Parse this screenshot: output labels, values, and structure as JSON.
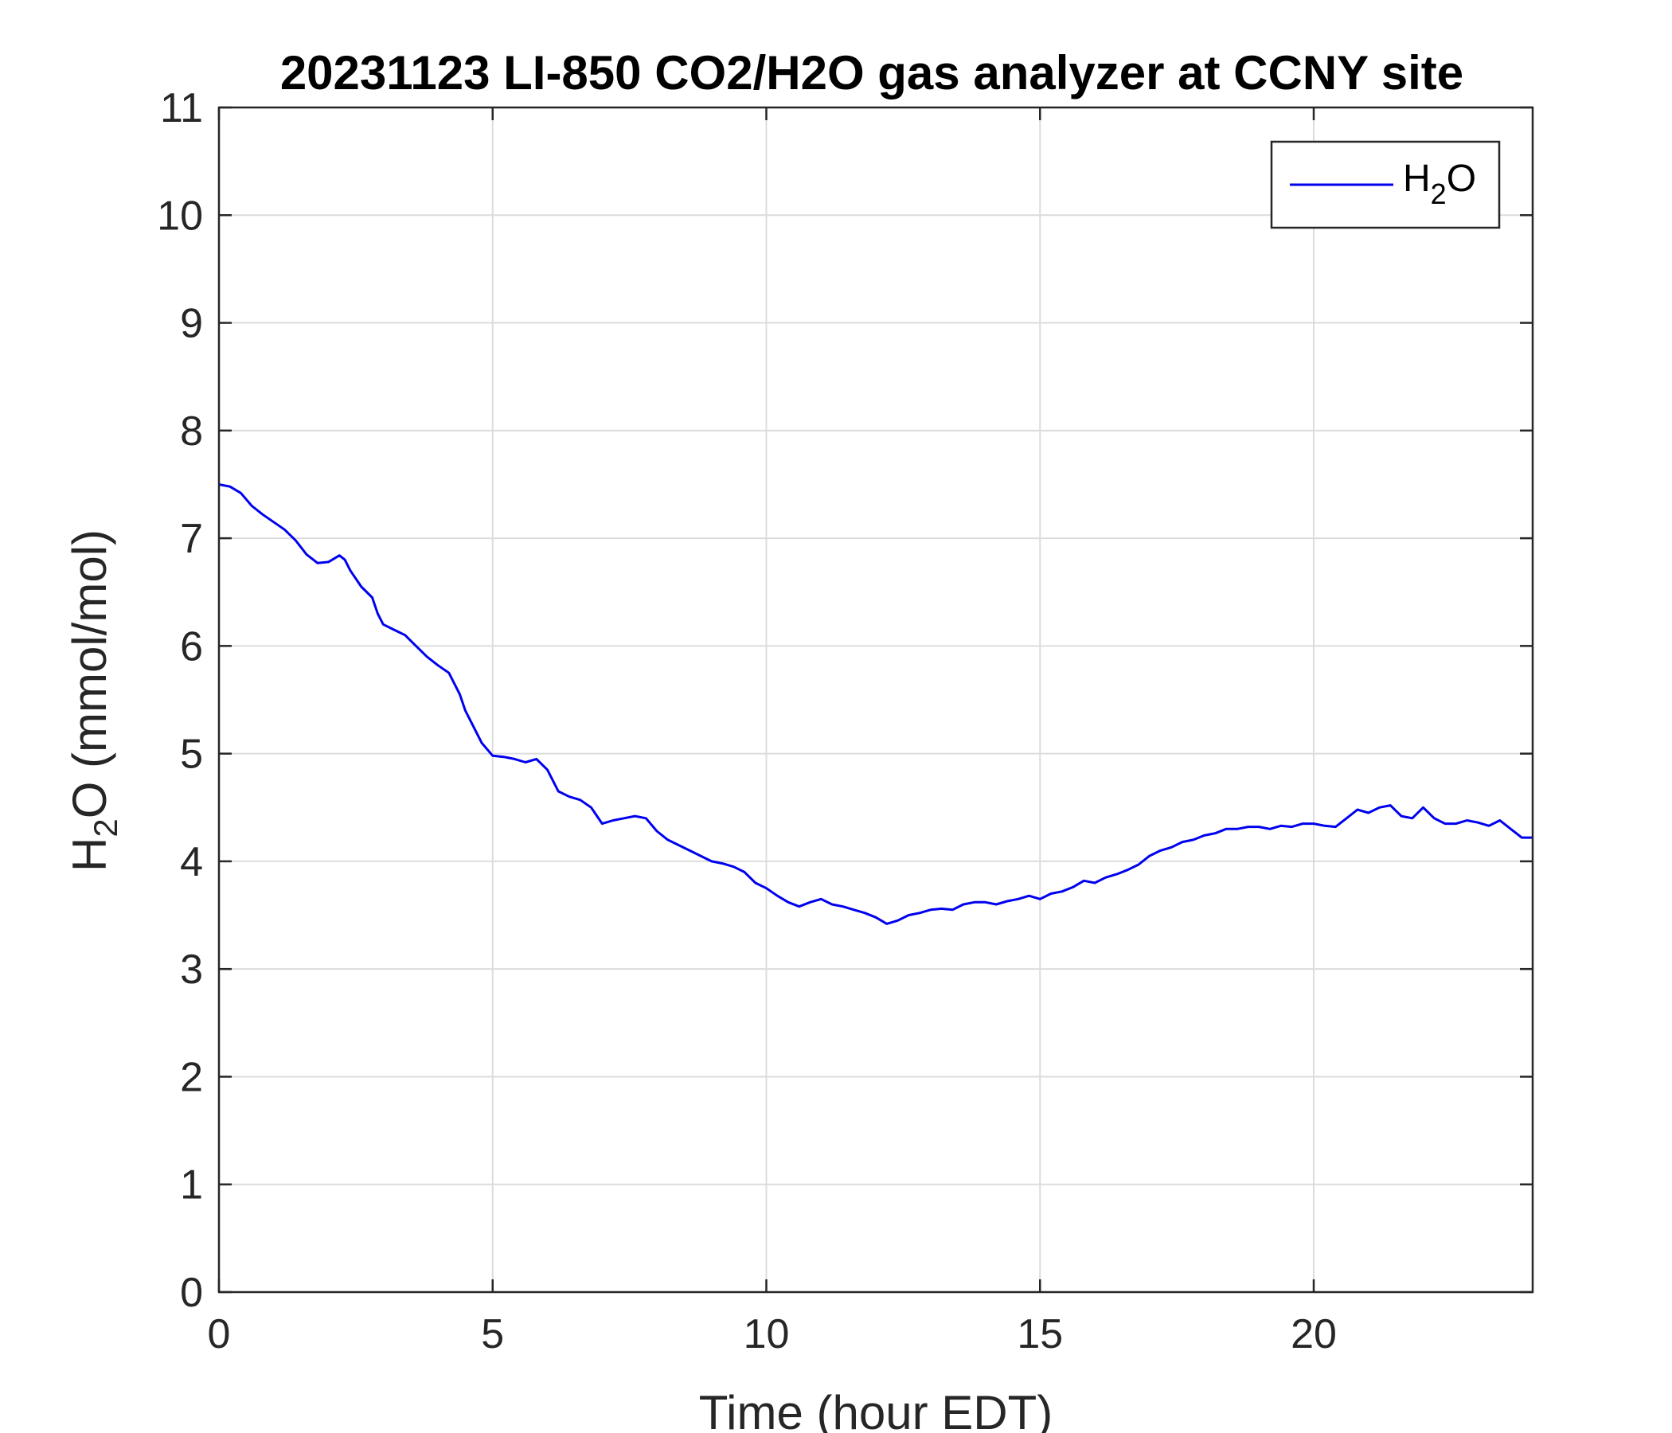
{
  "chart_data": {
    "type": "line",
    "title": "20231123 LI-850 CO2/H2O gas analyzer at CCNY site",
    "xlabel": "Time (hour EDT)",
    "ylabel": {
      "base": "H",
      "sub": "2",
      "rest": "O (mmol/mol)"
    },
    "xlim": [
      0,
      24
    ],
    "ylim": [
      0,
      11
    ],
    "xticks": [
      0,
      5,
      10,
      15,
      20
    ],
    "yticks": [
      0,
      1,
      2,
      3,
      4,
      5,
      6,
      7,
      8,
      9,
      10,
      11
    ],
    "grid": true,
    "legend_position": "top-right",
    "series": [
      {
        "name": {
          "base": "H",
          "sub": "2",
          "rest": "O"
        },
        "color": "#0000ee",
        "x": [
          0.0,
          0.2,
          0.4,
          0.6,
          0.8,
          1.0,
          1.2,
          1.4,
          1.6,
          1.8,
          2.0,
          2.2,
          2.3,
          2.4,
          2.6,
          2.8,
          2.9,
          3.0,
          3.2,
          3.4,
          3.6,
          3.8,
          4.0,
          4.2,
          4.4,
          4.5,
          4.6,
          4.8,
          5.0,
          5.2,
          5.4,
          5.6,
          5.8,
          6.0,
          6.2,
          6.4,
          6.6,
          6.8,
          7.0,
          7.2,
          7.4,
          7.6,
          7.8,
          8.0,
          8.2,
          8.4,
          8.6,
          8.8,
          9.0,
          9.2,
          9.4,
          9.6,
          9.8,
          10.0,
          10.2,
          10.4,
          10.6,
          10.8,
          11.0,
          11.2,
          11.4,
          11.6,
          11.8,
          12.0,
          12.2,
          12.4,
          12.6,
          12.8,
          13.0,
          13.2,
          13.4,
          13.6,
          13.8,
          14.0,
          14.2,
          14.4,
          14.6,
          14.8,
          15.0,
          15.2,
          15.4,
          15.6,
          15.8,
          16.0,
          16.2,
          16.4,
          16.6,
          16.8,
          17.0,
          17.2,
          17.4,
          17.6,
          17.8,
          18.0,
          18.2,
          18.4,
          18.6,
          18.8,
          19.0,
          19.2,
          19.4,
          19.6,
          19.8,
          20.0,
          20.2,
          20.4,
          20.6,
          20.8,
          21.0,
          21.2,
          21.4,
          21.6,
          21.8,
          22.0,
          22.2,
          22.4,
          22.6,
          22.8,
          23.0,
          23.2,
          23.4,
          23.6,
          23.8,
          24.0
        ],
        "y": [
          7.5,
          7.48,
          7.42,
          7.3,
          7.22,
          7.15,
          7.08,
          6.98,
          6.85,
          6.77,
          6.78,
          6.84,
          6.8,
          6.7,
          6.55,
          6.45,
          6.3,
          6.2,
          6.15,
          6.1,
          6.0,
          5.9,
          5.82,
          5.75,
          5.55,
          5.4,
          5.3,
          5.1,
          4.98,
          4.97,
          4.95,
          4.92,
          4.95,
          4.85,
          4.65,
          4.6,
          4.57,
          4.5,
          4.35,
          4.38,
          4.4,
          4.42,
          4.4,
          4.28,
          4.2,
          4.15,
          4.1,
          4.05,
          4.0,
          3.98,
          3.95,
          3.9,
          3.8,
          3.75,
          3.68,
          3.62,
          3.58,
          3.62,
          3.65,
          3.6,
          3.58,
          3.55,
          3.52,
          3.48,
          3.42,
          3.45,
          3.5,
          3.52,
          3.55,
          3.56,
          3.55,
          3.6,
          3.62,
          3.62,
          3.6,
          3.63,
          3.65,
          3.68,
          3.65,
          3.7,
          3.72,
          3.76,
          3.82,
          3.8,
          3.85,
          3.88,
          3.92,
          3.97,
          4.05,
          4.1,
          4.13,
          4.18,
          4.2,
          4.24,
          4.26,
          4.3,
          4.3,
          4.32,
          4.32,
          4.3,
          4.33,
          4.32,
          4.35,
          4.35,
          4.33,
          4.32,
          4.4,
          4.48,
          4.45,
          4.5,
          4.52,
          4.42,
          4.4,
          4.5,
          4.4,
          4.35,
          4.35,
          4.38,
          4.36,
          4.33,
          4.38,
          4.3,
          4.22,
          4.22
        ]
      }
    ]
  }
}
